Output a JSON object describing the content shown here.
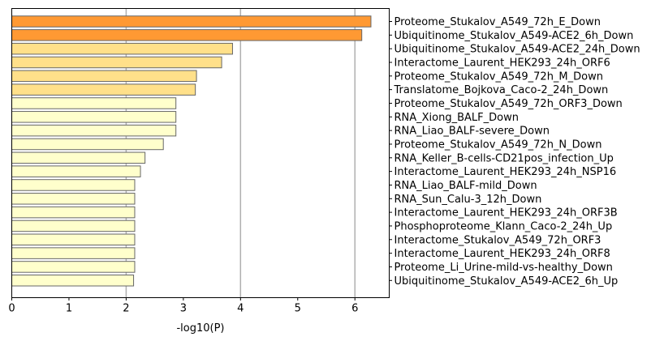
{
  "chart_data": {
    "type": "bar",
    "orientation": "horizontal",
    "title": "",
    "xlabel": "-log10(P)",
    "ylabel": "",
    "xlim": [
      0,
      6.6
    ],
    "xticks": [
      0,
      1,
      2,
      3,
      4,
      5,
      6
    ],
    "grid": "vertical lines at x = 2, 4, 6",
    "grid_lines": [
      2,
      4,
      6
    ],
    "category_label_position": "right",
    "bar_edge_color": "#666666",
    "grid_color": "#b0b0b0",
    "bars": [
      {
        "label": "Proteome_Stukalov_A549_72h_E_Down",
        "value": 6.28,
        "color": "#ff9933"
      },
      {
        "label": "Ubiquitinome_Stukalov_A549-ACE2_6h_Down",
        "value": 6.12,
        "color": "#ff9933"
      },
      {
        "label": "Ubiquitinome_Stukalov_A549-ACE2_24h_Down",
        "value": 3.86,
        "color": "#ffe08a"
      },
      {
        "label": "Interactome_Laurent_HEK293_24h_ORF6",
        "value": 3.67,
        "color": "#ffe08a"
      },
      {
        "label": "Proteome_Stukalov_A549_72h_M_Down",
        "value": 3.23,
        "color": "#ffe08a"
      },
      {
        "label": "Translatome_Bojkova_Caco-2_24h_Down",
        "value": 3.21,
        "color": "#ffe08a"
      },
      {
        "label": "Proteome_Stukalov_A549_72h_ORF3_Down",
        "value": 2.87,
        "color": "#ffffcc"
      },
      {
        "label": "RNA_Xiong_BALF_Down",
        "value": 2.87,
        "color": "#ffffcc"
      },
      {
        "label": "RNA_Liao_BALF-severe_Down",
        "value": 2.87,
        "color": "#ffffcc"
      },
      {
        "label": "Proteome_Stukalov_A549_72h_N_Down",
        "value": 2.65,
        "color": "#ffffcc"
      },
      {
        "label": "RNA_Keller_B-cells-CD21pos_infection_Up",
        "value": 2.33,
        "color": "#ffffcc"
      },
      {
        "label": "Interactome_Laurent_HEK293_24h_NSP16",
        "value": 2.25,
        "color": "#ffffcc"
      },
      {
        "label": "RNA_Liao_BALF-mild_Down",
        "value": 2.15,
        "color": "#ffffcc"
      },
      {
        "label": "RNA_Sun_Calu-3_12h_Down",
        "value": 2.15,
        "color": "#ffffcc"
      },
      {
        "label": "Interactome_Laurent_HEK293_24h_ORF3B",
        "value": 2.15,
        "color": "#ffffcc"
      },
      {
        "label": "Phosphoproteome_Klann_Caco-2_24h_Up",
        "value": 2.15,
        "color": "#ffffcc"
      },
      {
        "label": "Interactome_Stukalov_A549_72h_ORF3",
        "value": 2.15,
        "color": "#ffffcc"
      },
      {
        "label": "Interactome_Laurent_HEK293_24h_ORF8",
        "value": 2.15,
        "color": "#ffffcc"
      },
      {
        "label": "Proteome_Li_Urine-mild-vs-healthy_Down",
        "value": 2.15,
        "color": "#ffffcc"
      },
      {
        "label": "Ubiquitinome_Stukalov_A549-ACE2_6h_Up",
        "value": 2.13,
        "color": "#ffffcc"
      }
    ]
  }
}
